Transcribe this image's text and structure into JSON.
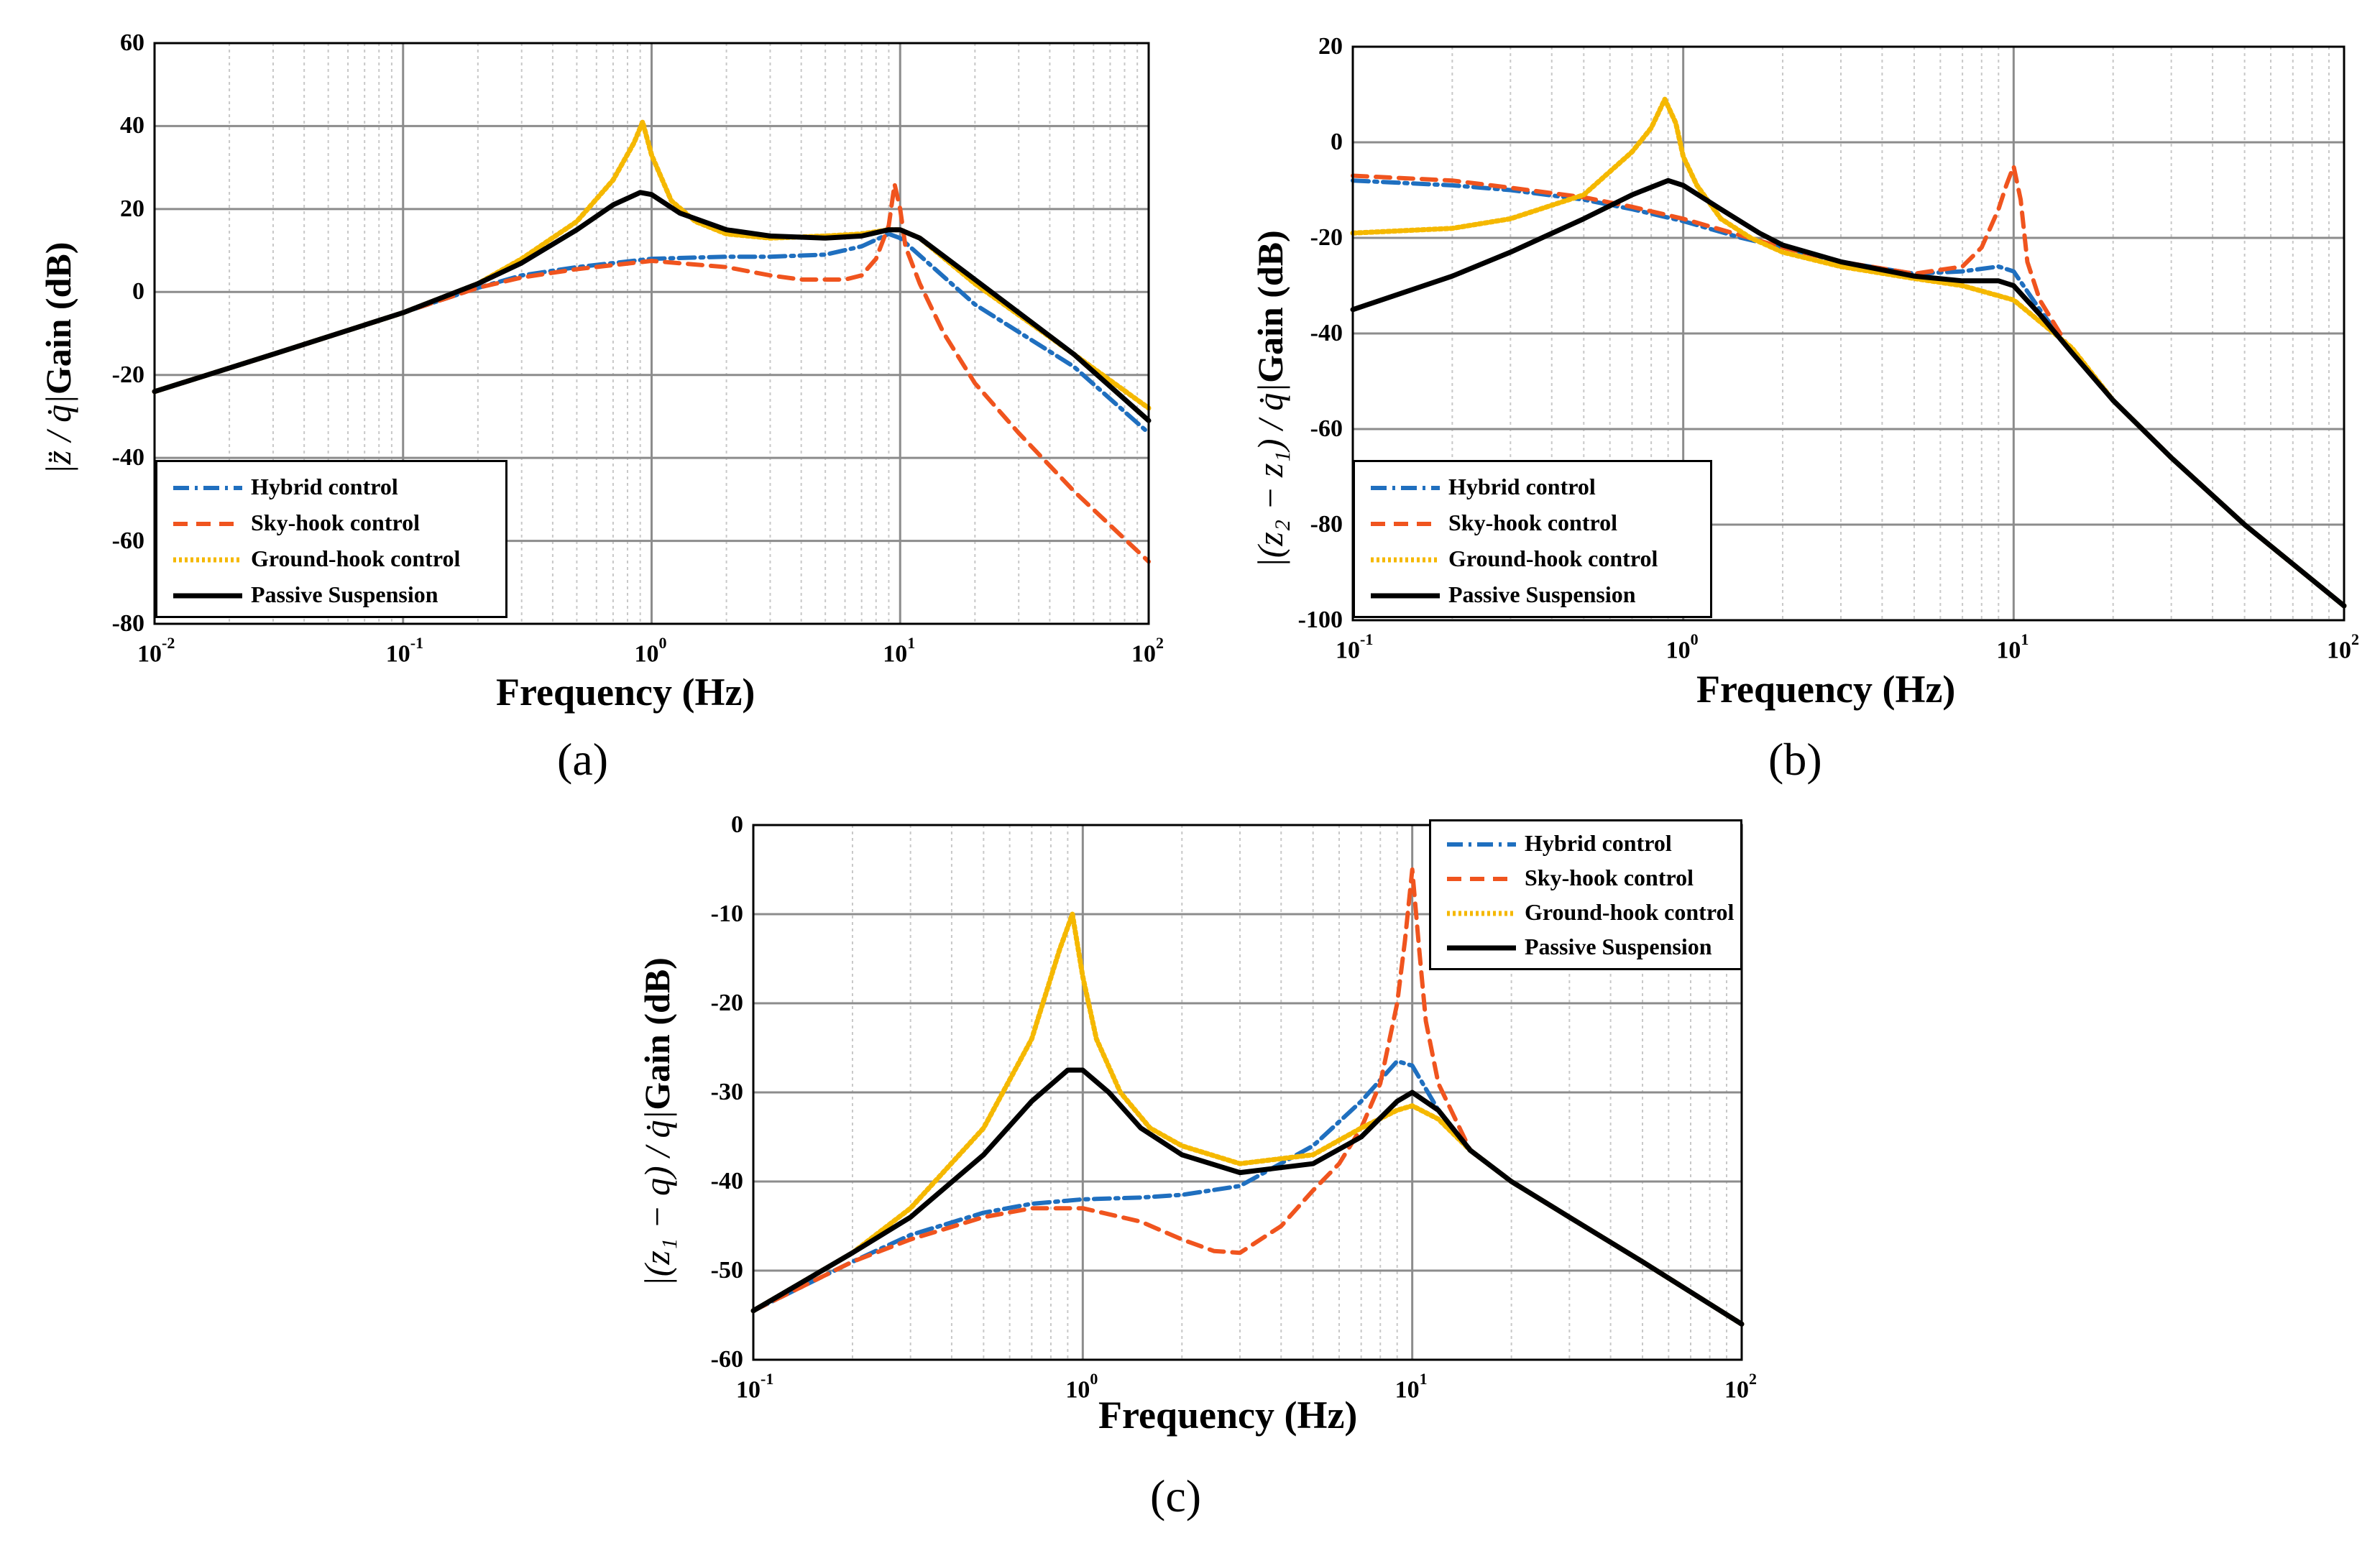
{
  "colors": {
    "hybrid": "#1f6fbf",
    "skyhook": "#f0541e",
    "groundhook": "#f5b800",
    "passive": "#000000",
    "grid": "#8c8c8c",
    "minorgrid": "#c8c8c8"
  },
  "legend_labels": [
    "Hybrid control",
    "Sky-hook control",
    "Ground-hook control",
    "Passive Suspension"
  ],
  "chart_data": [
    {
      "id": "a",
      "type": "line",
      "caption_letter": "a",
      "caption": "(a)",
      "xlabel": "Frequency (Hz)",
      "ylabel_math": "|z̈ / q̇|",
      "ylabel_text": "Gain (dB)",
      "xscale": "log",
      "xlim": [
        0.01,
        100
      ],
      "ylim": [
        -80,
        60
      ],
      "yticks": [
        "60",
        "40",
        "20",
        "0",
        "-20",
        "-40",
        "-60",
        "-80"
      ],
      "xticks": [
        {
          "base": "10",
          "exp": "-2"
        },
        {
          "base": "10",
          "exp": "-1"
        },
        {
          "base": "10",
          "exp": "0"
        },
        {
          "base": "10",
          "exp": "1"
        },
        {
          "base": "10",
          "exp": "2"
        }
      ],
      "legend_position": "bottom-left",
      "series": [
        {
          "name": "Hybrid control",
          "style": "dashdot",
          "x": [
            0.01,
            0.03,
            0.1,
            0.2,
            0.3,
            0.5,
            1,
            2,
            3,
            5,
            7,
            9,
            10,
            20,
            50,
            100
          ],
          "y": [
            -24,
            -15,
            -5,
            1,
            4,
            6,
            8,
            8.5,
            8.5,
            9,
            11,
            14,
            13,
            -3,
            -18,
            -34
          ]
        },
        {
          "name": "Sky-hook control",
          "style": "dashed",
          "x": [
            0.01,
            0.03,
            0.1,
            0.2,
            0.3,
            0.5,
            1,
            2,
            3,
            4,
            5,
            6,
            7,
            8,
            9,
            9.5,
            10,
            10.5,
            12,
            15,
            20,
            30,
            50,
            100
          ],
          "y": [
            -24,
            -15,
            -5,
            1,
            3.5,
            5.5,
            7.5,
            6,
            4,
            3,
            3,
            3,
            4,
            8,
            16,
            26,
            20,
            11,
            2,
            -10,
            -22,
            -34,
            -48,
            -65
          ]
        },
        {
          "name": "Ground-hook control",
          "style": "dotted",
          "x": [
            0.01,
            0.03,
            0.1,
            0.2,
            0.3,
            0.5,
            0.7,
            0.85,
            0.92,
            1,
            1.2,
            1.5,
            2,
            3,
            5,
            7,
            9,
            10,
            12,
            20,
            50,
            100
          ],
          "y": [
            -24,
            -15,
            -5,
            2,
            8,
            17,
            27,
            36,
            41,
            33,
            22,
            17,
            14,
            13,
            13.5,
            14,
            15,
            15,
            13,
            2,
            -15,
            -28
          ]
        },
        {
          "name": "Passive Suspension",
          "style": "solid",
          "x": [
            0.01,
            0.03,
            0.1,
            0.2,
            0.3,
            0.5,
            0.7,
            0.9,
            1,
            1.3,
            2,
            3,
            5,
            7,
            9,
            10,
            12,
            20,
            50,
            100
          ],
          "y": [
            -24,
            -15,
            -5,
            2,
            7,
            15,
            21,
            24,
            23.5,
            19,
            15,
            13.5,
            13,
            13.5,
            15,
            15,
            13,
            3,
            -15,
            -31
          ]
        }
      ]
    },
    {
      "id": "b",
      "type": "line",
      "caption_letter": "b",
      "caption": "(b)",
      "xlabel": "Frequency (Hz)",
      "ylabel_math": "|(z₂ − z₁) / q̇|",
      "ylabel_text": "Gain (dB)",
      "xscale": "log",
      "xlim": [
        0.1,
        100
      ],
      "ylim": [
        -100,
        20
      ],
      "yticks": [
        "20",
        "0",
        "-20",
        "-40",
        "-60",
        "-80",
        "-100"
      ],
      "xticks": [
        {
          "base": "10",
          "exp": "-1"
        },
        {
          "base": "10",
          "exp": "0"
        },
        {
          "base": "10",
          "exp": "1"
        },
        {
          "base": "10",
          "exp": "2"
        }
      ],
      "legend_position": "bottom-left",
      "series": [
        {
          "name": "Hybrid control",
          "style": "dashdot",
          "x": [
            0.1,
            0.2,
            0.3,
            0.5,
            0.7,
            1,
            1.5,
            2,
            3,
            5,
            7,
            9,
            10,
            12,
            15,
            20,
            30,
            50,
            100
          ],
          "y": [
            -8,
            -9,
            -10,
            -12,
            -14,
            -16.5,
            -20,
            -22,
            -25,
            -27.5,
            -27,
            -26,
            -27,
            -35,
            -44,
            -54,
            -66,
            -80,
            -97
          ]
        },
        {
          "name": "Sky-hook control",
          "style": "dashed",
          "x": [
            0.1,
            0.2,
            0.3,
            0.5,
            0.7,
            1,
            1.5,
            2,
            3,
            5,
            7,
            8,
            9,
            9.5,
            10,
            10.5,
            11,
            12,
            15,
            20,
            30,
            50,
            100
          ],
          "y": [
            -7,
            -8,
            -9.5,
            -11.5,
            -13.5,
            -16,
            -19.5,
            -22,
            -25,
            -27.5,
            -26,
            -22,
            -14,
            -9,
            -5,
            -12,
            -25,
            -33,
            -44,
            -54,
            -66,
            -80,
            -97
          ]
        },
        {
          "name": "Ground-hook control",
          "style": "dotted",
          "x": [
            0.1,
            0.2,
            0.3,
            0.5,
            0.7,
            0.8,
            0.88,
            0.95,
            1,
            1.1,
            1.3,
            1.6,
            2,
            3,
            5,
            7,
            10,
            15,
            20,
            30,
            50,
            100
          ],
          "y": [
            -19,
            -18,
            -16,
            -11,
            -2,
            3,
            9,
            4,
            -3,
            -9,
            -16,
            -20,
            -23,
            -26,
            -28.5,
            -30,
            -33,
            -43,
            -54,
            -66,
            -80,
            -97
          ]
        },
        {
          "name": "Passive Suspension",
          "style": "solid",
          "x": [
            0.1,
            0.2,
            0.3,
            0.5,
            0.7,
            0.9,
            1,
            1.3,
            1.7,
            2,
            3,
            5,
            7,
            9,
            10,
            12,
            15,
            20,
            30,
            50,
            100
          ],
          "y": [
            -35,
            -28,
            -23,
            -16,
            -11,
            -8,
            -9,
            -14,
            -19,
            -21.5,
            -25,
            -28,
            -29,
            -29,
            -30,
            -36,
            -44,
            -54,
            -66,
            -80,
            -97
          ]
        }
      ]
    },
    {
      "id": "c",
      "type": "line",
      "caption_letter": "c",
      "caption": "(c)",
      "xlabel": "Frequency (Hz)",
      "ylabel_math": "|(z₁ − q) / q̇|",
      "ylabel_text": "Gain (dB)",
      "xscale": "log",
      "xlim": [
        0.1,
        100
      ],
      "ylim": [
        -60,
        0
      ],
      "yticks": [
        "0",
        "-10",
        "-20",
        "-30",
        "-40",
        "-50",
        "-60"
      ],
      "xticks": [
        {
          "base": "10",
          "exp": "-1"
        },
        {
          "base": "10",
          "exp": "0"
        },
        {
          "base": "10",
          "exp": "1"
        },
        {
          "base": "10",
          "exp": "2"
        }
      ],
      "legend_position": "top-right",
      "series": [
        {
          "name": "Hybrid control",
          "style": "dashdot",
          "x": [
            0.1,
            0.2,
            0.3,
            0.5,
            0.7,
            1,
            1.5,
            2,
            3,
            5,
            7,
            9,
            10,
            12,
            15,
            20,
            30,
            50,
            100
          ],
          "y": [
            -54.5,
            -49,
            -46,
            -43.5,
            -42.5,
            -42,
            -41.8,
            -41.5,
            -40.5,
            -36,
            -31,
            -26.5,
            -27,
            -32,
            -36.5,
            -40,
            -44,
            -49,
            -56
          ]
        },
        {
          "name": "Sky-hook control",
          "style": "dashed",
          "x": [
            0.1,
            0.2,
            0.3,
            0.5,
            0.7,
            1,
            1.5,
            2,
            2.5,
            3,
            4,
            5,
            6,
            7,
            8,
            9,
            9.5,
            10,
            10.5,
            11,
            12,
            15,
            20,
            30,
            50,
            100
          ],
          "y": [
            -54.5,
            -49,
            -46.5,
            -44,
            -43,
            -43,
            -44.5,
            -46.5,
            -47.8,
            -48,
            -45,
            -41,
            -38,
            -34,
            -29,
            -20,
            -13,
            -5,
            -14,
            -22,
            -29,
            -36.5,
            -40,
            -44,
            -49,
            -56
          ]
        },
        {
          "name": "Ground-hook control",
          "style": "dotted",
          "x": [
            0.1,
            0.2,
            0.3,
            0.5,
            0.7,
            0.85,
            0.93,
            1,
            1.1,
            1.3,
            1.6,
            2,
            3,
            5,
            7,
            9,
            10,
            12,
            15,
            20,
            30,
            50,
            100
          ],
          "y": [
            -54.5,
            -48,
            -43,
            -34,
            -24,
            -14,
            -10,
            -17,
            -24,
            -30,
            -34,
            -36,
            -38,
            -37,
            -34,
            -32,
            -31.5,
            -33,
            -36.5,
            -40,
            -44,
            -49,
            -56
          ]
        },
        {
          "name": "Passive Suspension",
          "style": "solid",
          "x": [
            0.1,
            0.2,
            0.3,
            0.5,
            0.7,
            0.9,
            1,
            1.2,
            1.5,
            2,
            3,
            5,
            7,
            9,
            10,
            12,
            15,
            20,
            30,
            50,
            100
          ],
          "y": [
            -54.5,
            -48,
            -44,
            -37,
            -31,
            -27.5,
            -27.5,
            -30,
            -34,
            -37,
            -39,
            -38,
            -35,
            -31,
            -30,
            -32,
            -36.5,
            -40,
            -44,
            -49,
            -56
          ]
        }
      ]
    }
  ]
}
